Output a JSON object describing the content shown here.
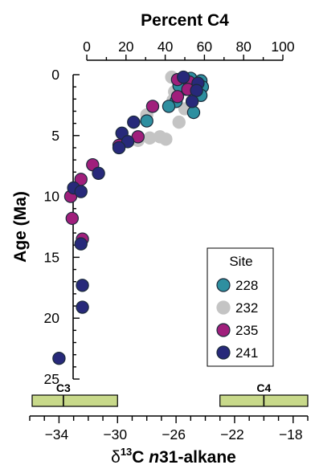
{
  "chart_data": {
    "type": "scatter",
    "top_axis": {
      "label": "Percent C4",
      "ticks": [
        0,
        20,
        40,
        60,
        80,
        100
      ]
    },
    "bottom_axis": {
      "label_prefix": "δ",
      "label_superscript": "13",
      "label_mid": "C ",
      "label_italic": "n",
      "label_suffix": "31-alkane",
      "ticks": [
        -34,
        -30,
        -26,
        -22,
        -18
      ],
      "tick_labels": [
        "−34",
        "−30",
        "−26",
        "−22",
        "−18"
      ],
      "xlim": [
        -36,
        -17
      ]
    },
    "y_axis": {
      "label": "Age (Ma)",
      "ticks": [
        0,
        5,
        10,
        15,
        20,
        25
      ],
      "ylim": [
        0,
        25
      ],
      "reversed": true
    },
    "bands": [
      {
        "label": "C3",
        "range": [
          -36,
          -30
        ],
        "center": -33.7,
        "color": "#c8d98a"
      },
      {
        "label": "C4",
        "range": [
          -23,
          -17
        ],
        "center": -20,
        "color": "#c8d98a"
      }
    ],
    "legend": {
      "title": "Site",
      "placement": "lower-right",
      "entries": [
        "228",
        "232",
        "235",
        "241"
      ]
    },
    "series": [
      {
        "name": "228",
        "color": "#2e8fa0",
        "edge": "#1b2a3a",
        "points": [
          [
            -25.0,
            0.3
          ],
          [
            -24.3,
            0.5
          ],
          [
            -24.2,
            1.0
          ],
          [
            -24.3,
            1.7
          ],
          [
            -25.3,
            1.2
          ],
          [
            -26.0,
            2.2
          ],
          [
            -26.5,
            2.6
          ],
          [
            -24.8,
            3.1
          ],
          [
            -28.0,
            3.8
          ],
          [
            -25.8,
            0.9
          ]
        ]
      },
      {
        "name": "232",
        "color": "#c4c4c4",
        "edge": "#c4c4c4",
        "points": [
          [
            -26.3,
            0.2
          ],
          [
            -25.7,
            0.6
          ],
          [
            -26.1,
            1.4
          ],
          [
            -26.2,
            2.1
          ],
          [
            -25.4,
            2.8
          ],
          [
            -25.8,
            3.9
          ],
          [
            -28.0,
            3.3
          ],
          [
            -27.1,
            5.1
          ],
          [
            -27.8,
            5.2
          ],
          [
            -26.7,
            5.3
          ],
          [
            -28.6,
            5.4
          ]
        ]
      },
      {
        "name": "235",
        "color": "#a01f7c",
        "edge": "#1b2a3a",
        "points": [
          [
            -25.9,
            0.4
          ],
          [
            -25.1,
            0.6
          ],
          [
            -25.2,
            1.2
          ],
          [
            -25.9,
            1.8
          ],
          [
            -27.6,
            2.6
          ],
          [
            -28.6,
            5.1
          ],
          [
            -29.9,
            5.8
          ],
          [
            -31.7,
            7.4
          ],
          [
            -32.5,
            8.6
          ],
          [
            -33.2,
            10.0
          ],
          [
            -33.1,
            11.8
          ],
          [
            -32.4,
            13.5
          ]
        ]
      },
      {
        "name": "241",
        "color": "#27297a",
        "edge": "#1b2a3a",
        "points": [
          [
            -25.5,
            0.2
          ],
          [
            -24.5,
            0.7
          ],
          [
            -24.6,
            1.3
          ],
          [
            -24.9,
            2.2
          ],
          [
            -28.9,
            3.9
          ],
          [
            -29.7,
            4.8
          ],
          [
            -29.3,
            5.5
          ],
          [
            -29.9,
            6.0
          ],
          [
            -31.3,
            8.1
          ],
          [
            -33.0,
            9.3
          ],
          [
            -32.5,
            9.6
          ],
          [
            -32.5,
            13.9
          ],
          [
            -32.4,
            17.3
          ],
          [
            -32.4,
            19.1
          ],
          [
            -34.0,
            23.3
          ]
        ]
      }
    ]
  }
}
